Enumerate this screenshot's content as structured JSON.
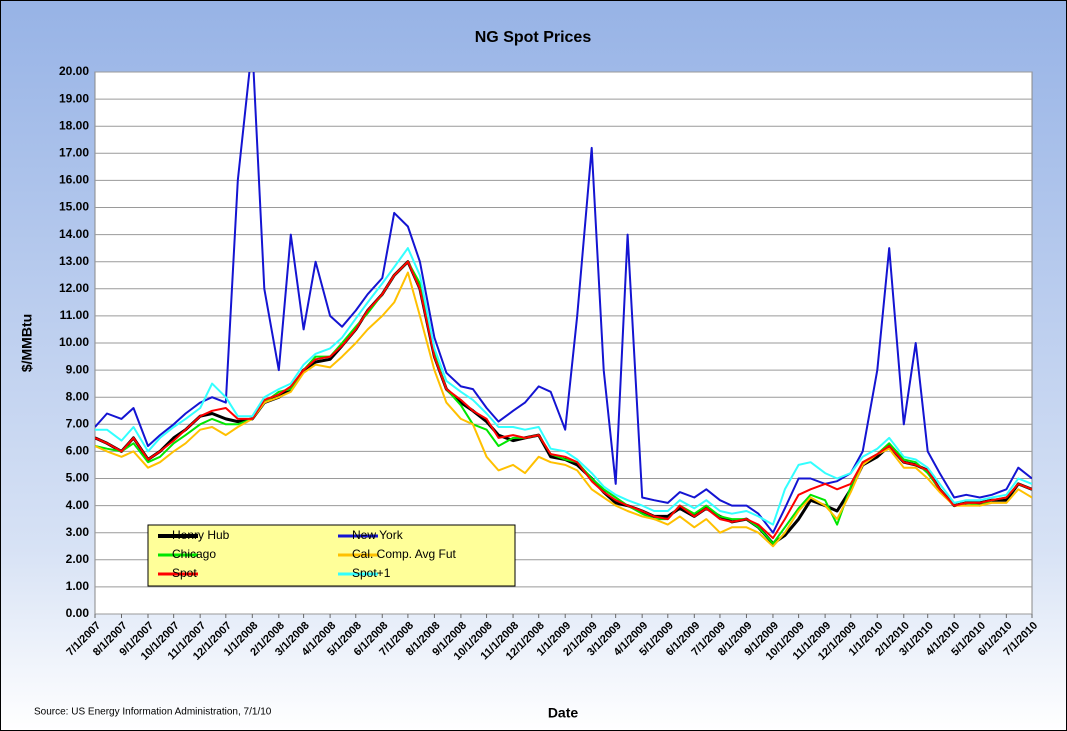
{
  "chart_data": {
    "type": "line",
    "title": "NG Spot Prices",
    "x_label": "Date",
    "y_label": "$/MMBtu",
    "source": "Source:  US Energy Information Administration, 7/1/10",
    "x": [
      "7/1/2007",
      "7/15/2007",
      "8/1/2007",
      "8/15/2007",
      "9/1/2007",
      "9/15/2007",
      "10/1/2007",
      "10/15/2007",
      "11/1/2007",
      "11/15/2007",
      "12/1/2007",
      "12/15/2007",
      "1/1/2008",
      "1/15/2008",
      "2/1/2008",
      "2/15/2008",
      "3/1/2008",
      "3/15/2008",
      "4/1/2008",
      "4/15/2008",
      "5/1/2008",
      "5/15/2008",
      "6/1/2008",
      "6/15/2008",
      "7/1/2008",
      "7/15/2008",
      "8/1/2008",
      "8/15/2008",
      "9/1/2008",
      "9/15/2008",
      "10/1/2008",
      "10/15/2008",
      "11/1/2008",
      "11/15/2008",
      "12/1/2008",
      "12/15/2008",
      "1/1/2009",
      "1/15/2009",
      "2/1/2009",
      "2/15/2009",
      "3/1/2009",
      "3/15/2009",
      "4/1/2009",
      "4/15/2009",
      "5/1/2009",
      "5/15/2009",
      "6/1/2009",
      "6/15/2009",
      "7/1/2009",
      "7/15/2009",
      "8/1/2009",
      "8/15/2009",
      "9/1/2009",
      "9/15/2009",
      "10/1/2009",
      "10/15/2009",
      "11/1/2009",
      "11/15/2009",
      "12/1/2009",
      "12/15/2009",
      "1/1/2010",
      "1/15/2010",
      "2/1/2010",
      "2/15/2010",
      "3/1/2010",
      "3/15/2010",
      "4/1/2010",
      "4/15/2010",
      "5/1/2010",
      "5/15/2010",
      "6/1/2010",
      "6/15/2010",
      "7/1/2010"
    ],
    "xlim": [
      "7/1/2007",
      "7/1/2010"
    ],
    "xticks": [
      "7/1/2007",
      "8/1/2007",
      "9/1/2007",
      "10/1/2007",
      "11/1/2007",
      "12/1/2007",
      "1/1/2008",
      "2/1/2008",
      "3/1/2008",
      "4/1/2008",
      "5/1/2008",
      "6/1/2008",
      "7/1/2008",
      "8/1/2008",
      "9/1/2008",
      "10/1/2008",
      "11/1/2008",
      "12/1/2008",
      "1/1/2009",
      "2/1/2009",
      "3/1/2009",
      "4/1/2009",
      "5/1/2009",
      "6/1/2009",
      "7/1/2009",
      "8/1/2009",
      "9/1/2009",
      "10/1/2009",
      "11/1/2009",
      "12/1/2009",
      "1/1/2010",
      "2/1/2010",
      "3/1/2010",
      "4/1/2010",
      "5/1/2010",
      "6/1/2010",
      "7/1/2010"
    ],
    "ylim": [
      0,
      20
    ],
    "yticks": [
      {
        "value": 0,
        "label": "0.00"
      },
      {
        "value": 1,
        "label": "1.00"
      },
      {
        "value": 2,
        "label": "2.00"
      },
      {
        "value": 3,
        "label": "3.00"
      },
      {
        "value": 4,
        "label": "4.00"
      },
      {
        "value": 5,
        "label": "5.00"
      },
      {
        "value": 6,
        "label": "6.00"
      },
      {
        "value": 7,
        "label": "7.00"
      },
      {
        "value": 8,
        "label": "8.00"
      },
      {
        "value": 9,
        "label": "9.00"
      },
      {
        "value": 10,
        "label": "10.00"
      },
      {
        "value": 11,
        "label": "11.00"
      },
      {
        "value": 12,
        "label": "12.00"
      },
      {
        "value": 13,
        "label": "13.00"
      },
      {
        "value": 14,
        "label": "14.00"
      },
      {
        "value": 15,
        "label": "15.00"
      },
      {
        "value": 16,
        "label": "16.00"
      },
      {
        "value": 17,
        "label": "17.00"
      },
      {
        "value": 18,
        "label": "18.00"
      },
      {
        "value": 19,
        "label": "19.00"
      },
      {
        "value": 20,
        "label": "20.00"
      }
    ],
    "grid": true,
    "legend": "lower-left",
    "series": [
      {
        "name": "Henry Hub",
        "color": "#000000",
        "values": [
          6.5,
          6.3,
          6.0,
          6.5,
          5.7,
          6.0,
          6.5,
          6.8,
          7.3,
          7.4,
          7.2,
          7.1,
          7.2,
          7.8,
          8.0,
          8.3,
          9.0,
          9.3,
          9.4,
          9.9,
          10.5,
          11.2,
          11.8,
          12.5,
          13.0,
          12.0,
          9.5,
          8.3,
          7.8,
          7.5,
          7.1,
          6.6,
          6.4,
          6.5,
          6.6,
          5.8,
          5.7,
          5.5,
          5.0,
          4.5,
          4.1,
          4.0,
          3.8,
          3.6,
          3.6,
          3.9,
          3.6,
          3.9,
          3.6,
          3.4,
          3.5,
          3.2,
          2.6,
          2.9,
          3.5,
          4.2,
          4.0,
          3.8,
          4.6,
          5.5,
          5.8,
          6.2,
          5.6,
          5.5,
          5.3,
          4.6,
          4.0,
          4.1,
          4.1,
          4.2,
          4.2,
          4.8,
          4.6
        ]
      },
      {
        "name": "New York",
        "color": "#1414d2",
        "values": [
          6.9,
          7.4,
          7.2,
          7.6,
          6.2,
          6.6,
          7.0,
          7.4,
          7.8,
          8.0,
          7.8,
          16.0,
          21.0,
          12.0,
          9.0,
          14.0,
          10.5,
          13.0,
          11.0,
          10.6,
          11.2,
          11.8,
          12.4,
          14.8,
          14.3,
          13.0,
          10.2,
          8.9,
          8.4,
          8.3,
          7.6,
          7.1,
          7.5,
          7.8,
          8.4,
          8.2,
          6.8,
          11.0,
          17.2,
          9.0,
          4.8,
          14.0,
          4.3,
          4.2,
          4.1,
          4.5,
          4.3,
          4.6,
          4.2,
          4.0,
          4.0,
          3.7,
          3.0,
          3.9,
          5.0,
          5.0,
          4.8,
          4.9,
          5.2,
          6.0,
          9.0,
          13.5,
          7.0,
          10.0,
          6.0,
          5.2,
          4.3,
          4.4,
          4.3,
          4.4,
          4.6,
          5.4,
          5.0
        ]
      },
      {
        "name": "Chicago",
        "color": "#00e600",
        "values": [
          6.2,
          6.1,
          6.0,
          6.3,
          5.6,
          5.8,
          6.3,
          6.6,
          7.0,
          7.2,
          7.0,
          7.0,
          7.2,
          7.8,
          8.2,
          8.3,
          9.0,
          9.5,
          9.5,
          10.0,
          10.6,
          11.1,
          11.8,
          12.5,
          13.0,
          12.2,
          9.6,
          8.3,
          7.7,
          7.0,
          6.8,
          6.2,
          6.5,
          6.5,
          6.6,
          5.9,
          5.7,
          5.6,
          5.0,
          4.6,
          4.3,
          4.0,
          3.7,
          3.5,
          3.5,
          4.0,
          3.7,
          4.0,
          3.6,
          3.5,
          3.5,
          3.2,
          2.6,
          3.2,
          3.9,
          4.4,
          4.2,
          3.3,
          4.7,
          5.6,
          5.9,
          6.3,
          5.7,
          5.6,
          5.2,
          4.6,
          4.0,
          4.1,
          4.0,
          4.2,
          4.3,
          4.8,
          4.6
        ]
      },
      {
        "name": "Cal. Comp. Avg Fut",
        "color": "#ffc000",
        "values": [
          6.2,
          6.0,
          5.8,
          6.0,
          5.4,
          5.6,
          6.0,
          6.3,
          6.8,
          6.9,
          6.6,
          6.9,
          7.2,
          7.8,
          8.0,
          8.2,
          8.9,
          9.2,
          9.1,
          9.5,
          10.0,
          10.5,
          11.0,
          11.5,
          12.6,
          11.0,
          9.0,
          7.8,
          7.2,
          7.0,
          5.8,
          5.3,
          5.5,
          5.2,
          5.8,
          5.6,
          5.5,
          5.3,
          4.6,
          4.3,
          4.0,
          3.8,
          3.6,
          3.5,
          3.3,
          3.6,
          3.2,
          3.5,
          3.0,
          3.2,
          3.2,
          3.0,
          2.5,
          3.0,
          3.8,
          4.3,
          4.0,
          3.5,
          4.5,
          5.5,
          5.9,
          6.1,
          5.4,
          5.4,
          5.0,
          4.5,
          4.0,
          4.0,
          4.0,
          4.1,
          4.1,
          4.6,
          4.3
        ]
      },
      {
        "name": "Spot",
        "color": "#ff0000",
        "values": [
          6.5,
          6.3,
          6.0,
          6.5,
          5.7,
          6.0,
          6.4,
          6.8,
          7.3,
          7.5,
          7.6,
          7.2,
          7.2,
          7.9,
          8.1,
          8.4,
          9.0,
          9.4,
          9.5,
          9.9,
          10.5,
          11.2,
          11.8,
          12.5,
          13.0,
          12.0,
          9.5,
          8.3,
          7.9,
          7.5,
          7.2,
          6.5,
          6.6,
          6.5,
          6.6,
          5.9,
          5.8,
          5.6,
          4.9,
          4.5,
          4.2,
          4.0,
          3.8,
          3.6,
          3.5,
          4.0,
          3.6,
          3.9,
          3.5,
          3.4,
          3.5,
          3.3,
          2.8,
          3.5,
          4.4,
          4.6,
          4.8,
          4.6,
          4.8,
          5.6,
          5.9,
          6.2,
          5.6,
          5.5,
          5.3,
          4.6,
          4.0,
          4.1,
          4.1,
          4.2,
          4.3,
          4.8,
          4.6
        ]
      },
      {
        "name": "Spot+1",
        "color": "#33ffff",
        "values": [
          6.8,
          6.8,
          6.4,
          6.9,
          6.0,
          6.5,
          6.9,
          7.2,
          7.6,
          8.5,
          8.0,
          7.3,
          7.3,
          8.0,
          8.3,
          8.5,
          9.2,
          9.6,
          9.8,
          10.2,
          10.9,
          11.5,
          12.2,
          12.8,
          13.5,
          12.5,
          9.8,
          8.6,
          8.2,
          7.9,
          7.4,
          6.9,
          6.9,
          6.8,
          6.9,
          6.1,
          6.0,
          5.7,
          5.2,
          4.7,
          4.4,
          4.2,
          4.0,
          3.8,
          3.8,
          4.2,
          3.9,
          4.2,
          3.8,
          3.7,
          3.8,
          3.6,
          3.3,
          4.6,
          5.5,
          5.6,
          5.2,
          5.0,
          5.2,
          5.8,
          6.1,
          6.5,
          5.8,
          5.7,
          5.4,
          4.8,
          4.1,
          4.2,
          4.2,
          4.3,
          4.4,
          5.0,
          4.8
        ]
      }
    ]
  }
}
